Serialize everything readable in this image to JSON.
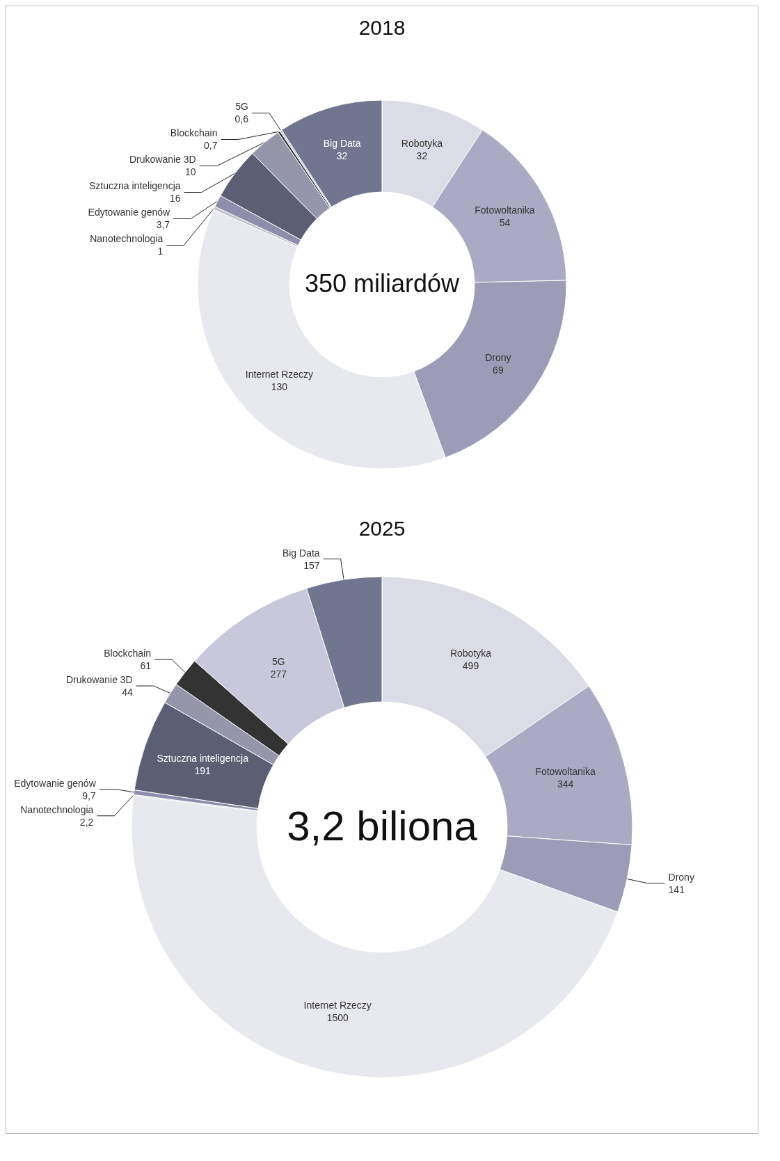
{
  "chart_data": [
    {
      "type": "donut",
      "title": "2018",
      "annotations": [
        "350 miliardów"
      ],
      "categories": [
        "Robotyka",
        "Fotowoltanika",
        "Drony",
        "Internet Rzeczy",
        "Nanotechnologia",
        "Edytowanie genów",
        "Sztuczna inteligencja",
        "Drukowanie 3D",
        "Blockchain",
        "5G",
        "Big Data"
      ],
      "values": [
        32,
        54,
        69,
        130,
        1,
        3.7,
        16,
        10,
        0.7,
        0.6,
        32
      ],
      "value_labels": [
        "32",
        "54",
        "69",
        "130",
        "1",
        "3,7",
        "16",
        "10",
        "0,7",
        "0,6",
        "32"
      ],
      "colors": [
        "#dcdce6",
        "#aaaac4",
        "#9c9cb8",
        "#e8e8ef",
        "#c4c4cc",
        "#8e8eac",
        "#5c5f74",
        "#9696ab",
        "#333333",
        "#c8c8da",
        "#707590"
      ]
    },
    {
      "type": "donut",
      "title": "2025",
      "annotations": [
        "3,2 biliona"
      ],
      "categories": [
        "Robotyka",
        "Fotowoltanika",
        "Drony",
        "Internet Rzeczy",
        "Nanotechnologia",
        "Edytowanie genów",
        "Sztuczna inteligencja",
        "Drukowanie 3D",
        "Blockchain",
        "5G",
        "Big Data"
      ],
      "values": [
        499,
        344,
        141,
        1500,
        2.2,
        9.7,
        191,
        44,
        61,
        277,
        157
      ],
      "value_labels": [
        "499",
        "344",
        "141",
        "1500",
        "2,2",
        "9,7",
        "191",
        "44",
        "61",
        "277",
        "157"
      ],
      "colors": [
        "#dcdce6",
        "#aaaac4",
        "#9c9cb8",
        "#e8e8ef",
        "#c4c4cc",
        "#8e8eac",
        "#5c5f74",
        "#9696ab",
        "#333333",
        "#c8c8da",
        "#707590"
      ]
    }
  ]
}
